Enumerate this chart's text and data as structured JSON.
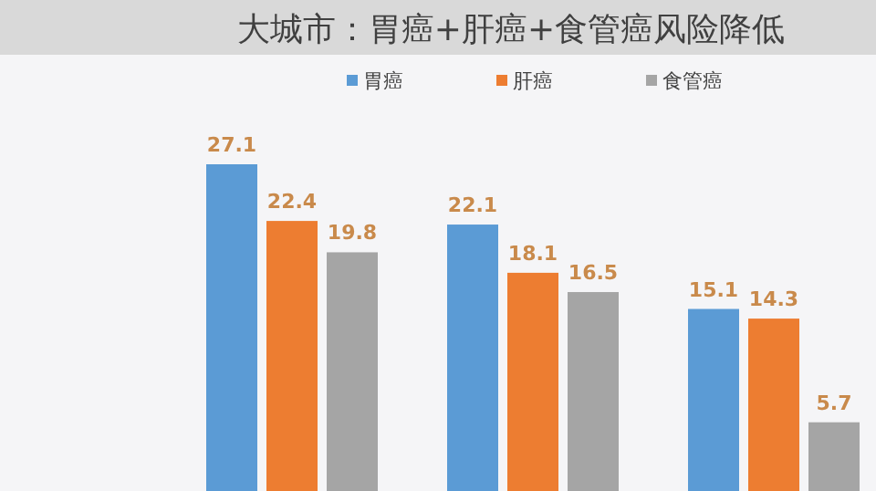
{
  "chart_data": {
    "type": "bar",
    "title": "大城市：胃癌+肝癌+食管癌风险降低",
    "categories": [
      null,
      null,
      null
    ],
    "series": [
      {
        "name": "胃癌",
        "color": "#5b9bd5",
        "values": [
          27.1,
          22.1,
          15.1
        ]
      },
      {
        "name": "肝癌",
        "color": "#ed7d31",
        "values": [
          22.4,
          18.1,
          14.3
        ]
      },
      {
        "name": "食管癌",
        "color": "#a5a5a5",
        "values": [
          19.8,
          16.5,
          5.7
        ]
      }
    ],
    "data_labels": true,
    "legend": "top"
  }
}
